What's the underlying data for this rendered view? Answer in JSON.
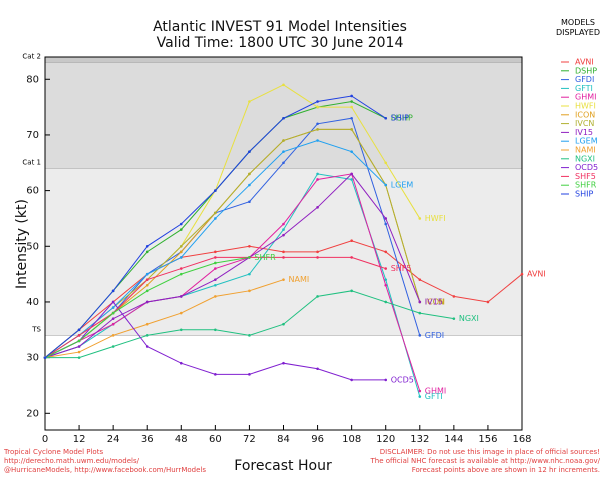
{
  "chart_data": {
    "type": "line",
    "title": "Atlantic INVEST 91 Model Intensities",
    "subtitle": "Valid Time: 1800 UTC 30 June 2014",
    "x_label": "Forecast Hour",
    "y_label": "Intensity (kt)",
    "legend_title": "MODELS DISPLAYED",
    "footer_left": [
      "Tropical Cyclone Model Plots",
      "http://derecho.math.uwm.edu/models/",
      "@HurricaneModels, http://www.facebook.com/HurrModels"
    ],
    "footer_right": [
      "DISCLAIMER: Do not use this image in place of official sources!",
      "The official NHC forecast is available at http://www.nhc.noaa.gov/",
      "Forecast points above are shown in 12 hr increments."
    ],
    "xlim": [
      0,
      168
    ],
    "ylim": [
      17,
      84
    ],
    "xticks": [
      0,
      12,
      24,
      36,
      48,
      60,
      72,
      84,
      96,
      108,
      120,
      132,
      144,
      156,
      168
    ],
    "yticks": [
      20,
      30,
      40,
      50,
      60,
      70,
      80
    ],
    "thresholds": [
      {
        "value": 34,
        "label": "TS"
      },
      {
        "value": 64,
        "label": "Cat 1"
      },
      {
        "value": 83,
        "label": "Cat 2"
      }
    ],
    "x": [
      0,
      12,
      24,
      36,
      48,
      60,
      72,
      84,
      96,
      108,
      120,
      132,
      144,
      156,
      168
    ],
    "series": [
      {
        "name": "AVNI",
        "color": "#f04040",
        "values": [
          30,
          35,
          40,
          45,
          48,
          49,
          50,
          49,
          49,
          51,
          49,
          44,
          41,
          40,
          45
        ]
      },
      {
        "name": "DSHP",
        "color": "#30b030",
        "values": [
          30,
          35,
          42,
          49,
          53,
          60,
          67,
          73,
          75,
          76,
          73,
          null,
          null,
          null,
          null
        ]
      },
      {
        "name": "GFDI",
        "color": "#3060e0",
        "values": [
          30,
          33,
          38,
          45,
          49,
          56,
          58,
          65,
          72,
          73,
          54,
          34,
          null,
          null,
          null
        ]
      },
      {
        "name": "GFTI",
        "color": "#20c0c0",
        "values": [
          30,
          32,
          36,
          40,
          41,
          43,
          45,
          53,
          63,
          62,
          44,
          23,
          null,
          null,
          null
        ]
      },
      {
        "name": "GHMI",
        "color": "#e020a0",
        "values": [
          30,
          33,
          36,
          40,
          41,
          46,
          48,
          54,
          62,
          63,
          43,
          24,
          null,
          null,
          null
        ]
      },
      {
        "name": "HWFI",
        "color": "#e8e040",
        "values": [
          30,
          34,
          38,
          44,
          50,
          60,
          76,
          79,
          75,
          75,
          65,
          55,
          null,
          null,
          null
        ]
      },
      {
        "name": "ICON",
        "color": "#e0a020",
        "values": [
          30,
          33,
          38,
          43,
          49,
          56,
          63,
          69,
          71,
          71,
          61,
          40,
          null,
          null,
          null
        ]
      },
      {
        "name": "IVCN",
        "color": "#b0b030",
        "values": [
          30,
          34,
          39,
          44,
          50,
          56,
          63,
          69,
          71,
          71,
          61,
          40,
          null,
          null,
          null
        ]
      },
      {
        "name": "IV15",
        "color": "#9020c0",
        "values": [
          30,
          32,
          37,
          40,
          41,
          44,
          48,
          52,
          57,
          63,
          55,
          40,
          null,
          null,
          null
        ]
      },
      {
        "name": "LGEM",
        "color": "#20a0f0",
        "values": [
          30,
          34,
          39,
          45,
          48,
          55,
          61,
          67,
          69,
          67,
          61,
          null,
          null,
          null,
          null
        ]
      },
      {
        "name": "NAMI",
        "color": "#f0a030",
        "values": [
          30,
          31,
          34,
          36,
          38,
          41,
          42,
          44,
          null,
          null,
          null,
          null,
          null,
          null,
          null
        ]
      },
      {
        "name": "NGXI",
        "color": "#20c080",
        "values": [
          30,
          30,
          32,
          34,
          35,
          35,
          34,
          36,
          41,
          42,
          40,
          38,
          37,
          null,
          null
        ]
      },
      {
        "name": "OCD5",
        "color": "#8020d0",
        "values": [
          30,
          33,
          40,
          32,
          29,
          27,
          27,
          29,
          28,
          26,
          26,
          null,
          null,
          null,
          null
        ]
      },
      {
        "name": "SHF5",
        "color": "#f03060",
        "values": [
          30,
          34,
          38,
          44,
          46,
          48,
          48,
          48,
          48,
          48,
          46,
          null,
          null,
          null,
          null
        ]
      },
      {
        "name": "SHFR",
        "color": "#40d040",
        "values": [
          30,
          33,
          38,
          42,
          45,
          47,
          48,
          null,
          null,
          null,
          null,
          null,
          null,
          null,
          null
        ]
      },
      {
        "name": "SHIP",
        "color": "#2040e0",
        "values": [
          30,
          35,
          42,
          50,
          54,
          60,
          67,
          73,
          76,
          77,
          73,
          null,
          null,
          null,
          null
        ]
      }
    ]
  }
}
